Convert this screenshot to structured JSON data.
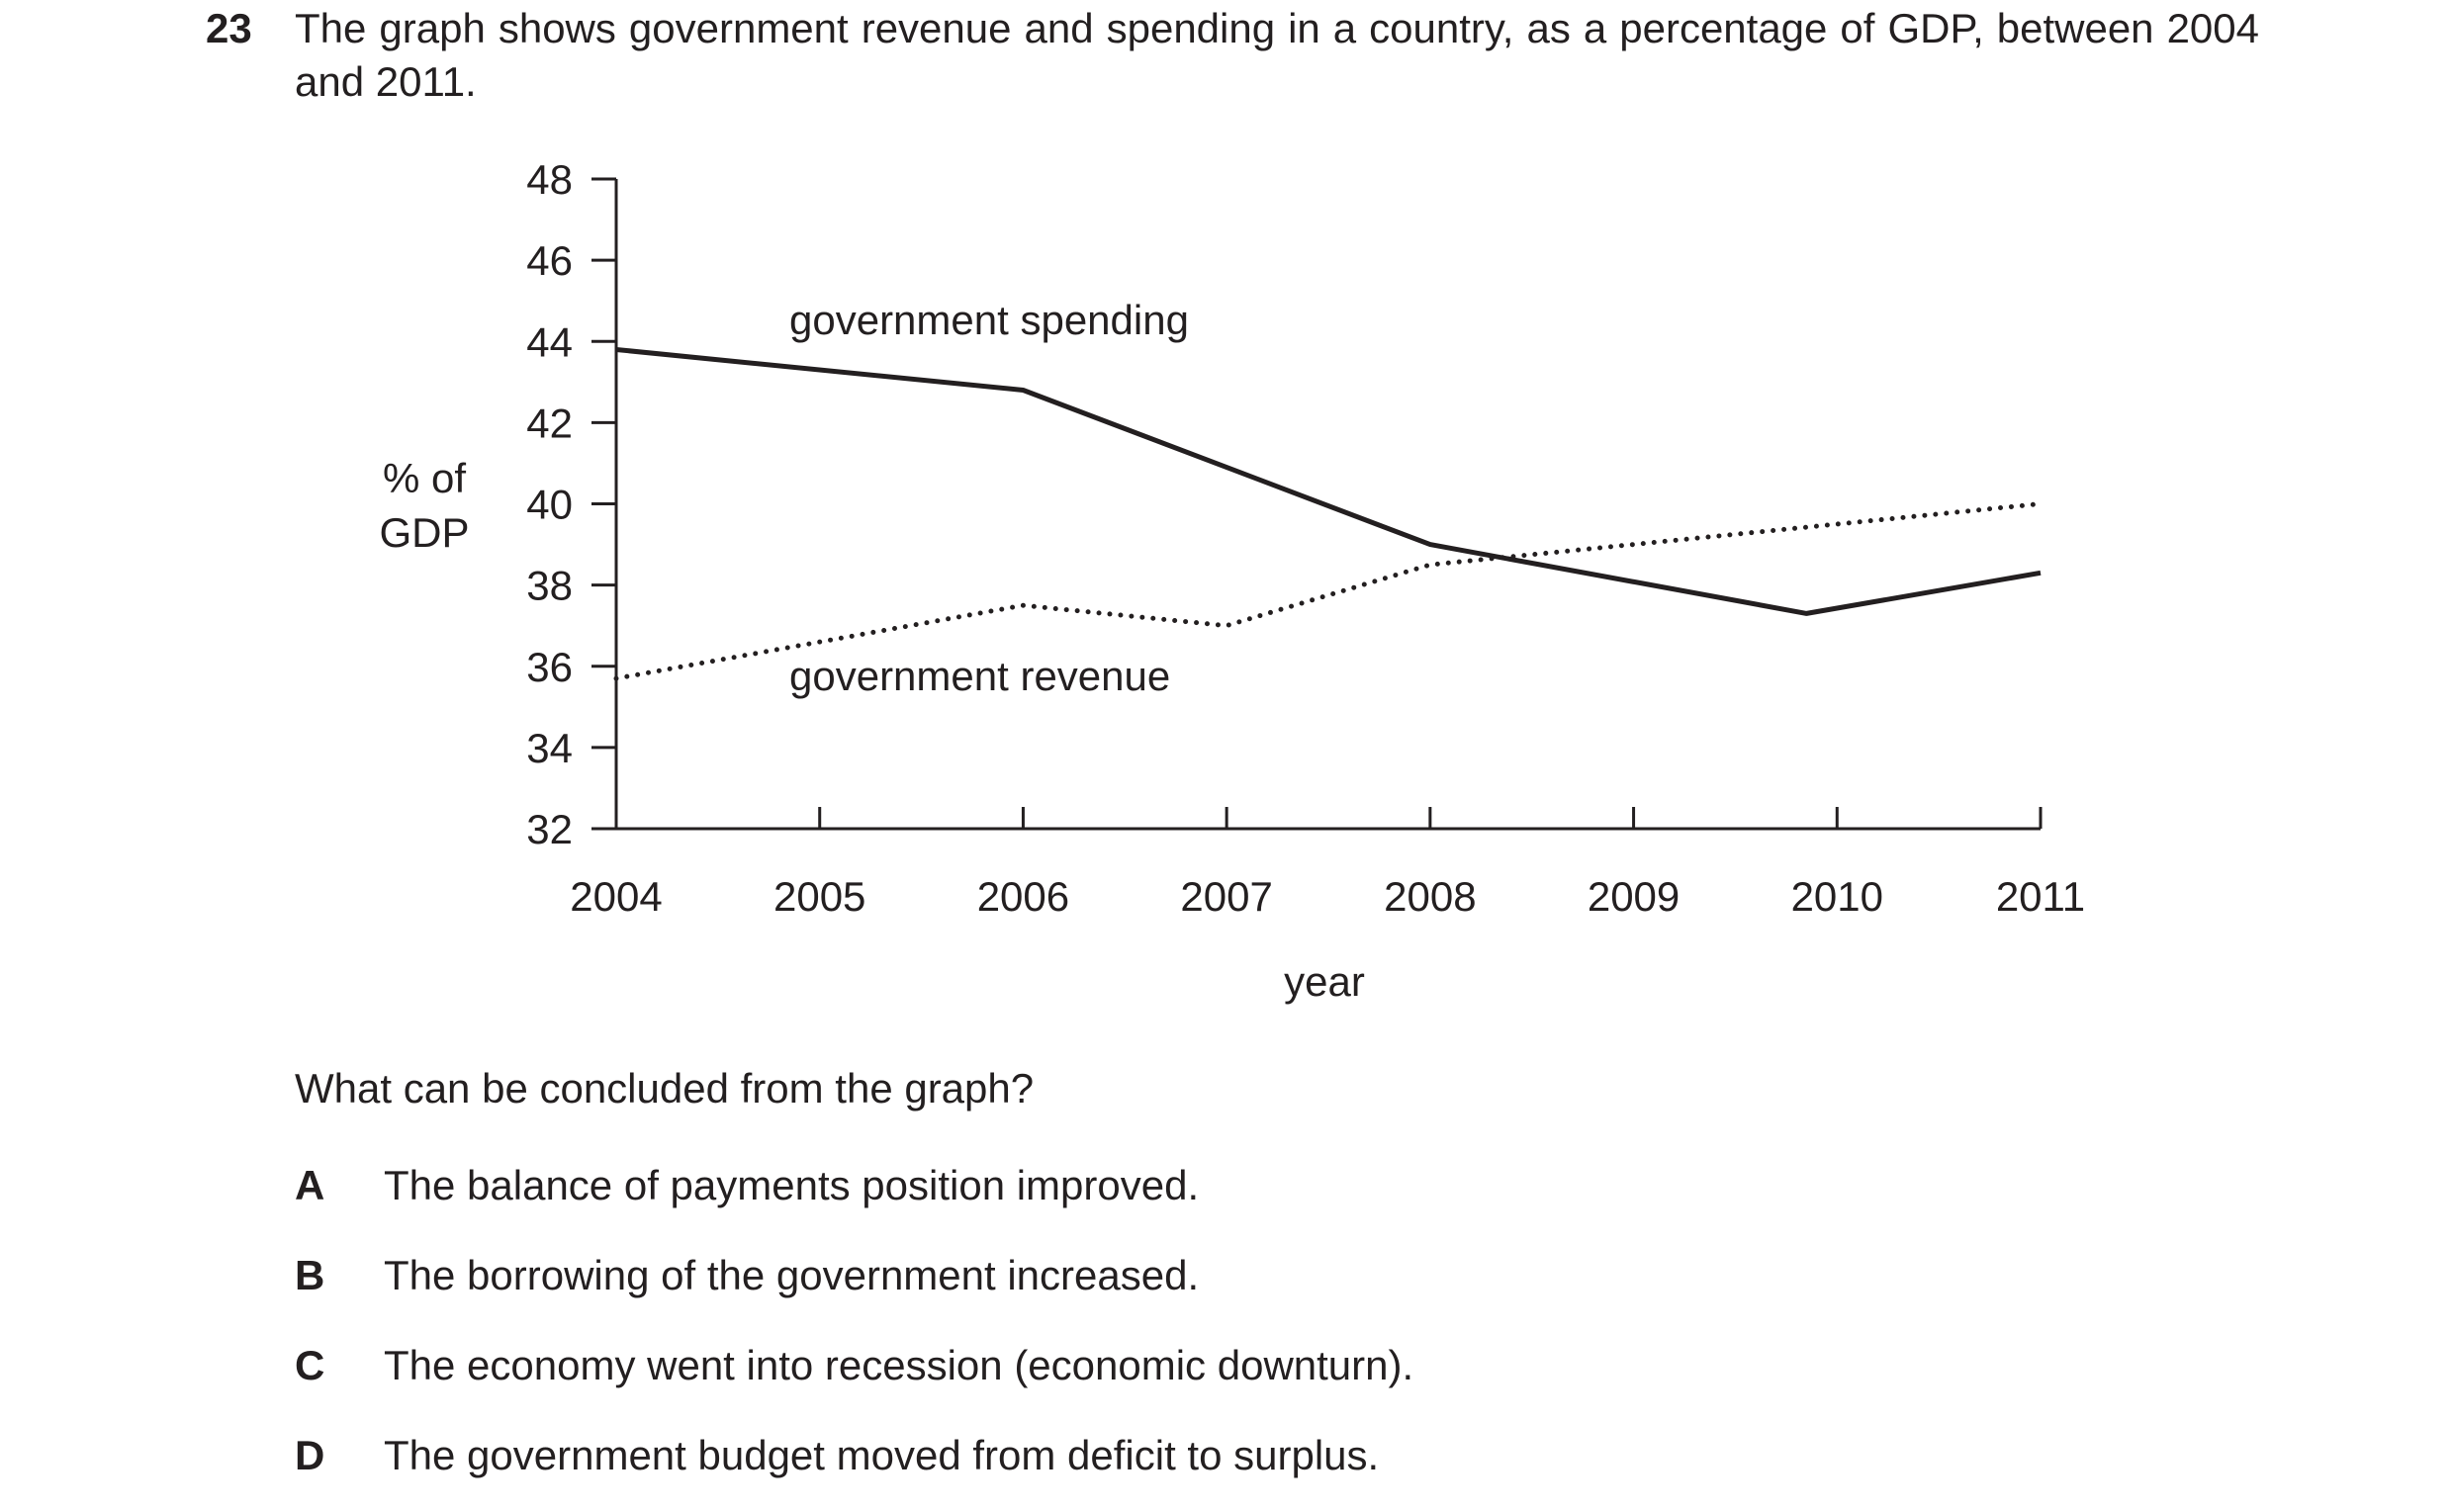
{
  "question": {
    "number": "23",
    "stem": "The graph shows government revenue and spending in a country, as a percentage of GDP, between 2004 and 2011.",
    "prompt": "What can be concluded from the graph?",
    "options": [
      {
        "letter": "A",
        "text": "The balance of payments position improved."
      },
      {
        "letter": "B",
        "text": "The borrowing of the government increased."
      },
      {
        "letter": "C",
        "text": "The economy went into recession (economic downturn)."
      },
      {
        "letter": "D",
        "text": "The government budget moved from deficit to surplus."
      }
    ]
  },
  "chart_data": {
    "type": "line",
    "title": "",
    "xlabel": "year",
    "ylabel_lines": [
      "% of",
      "GDP"
    ],
    "xlim": [
      2004,
      2011
    ],
    "ylim": [
      32,
      48
    ],
    "x_ticks": [
      2004,
      2005,
      2006,
      2007,
      2008,
      2009,
      2010,
      2011
    ],
    "y_ticks": [
      32,
      34,
      36,
      38,
      40,
      42,
      44,
      46,
      48
    ],
    "grid": false,
    "legend": "none",
    "series": [
      {
        "name": "government spending",
        "style": "solid",
        "color": "#231f20",
        "points": [
          [
            2004,
            43.8
          ],
          [
            2006,
            42.8
          ],
          [
            2008,
            39.0
          ],
          [
            2009.85,
            37.3
          ],
          [
            2011,
            38.3
          ]
        ]
      },
      {
        "name": "government revenue",
        "style": "dotted",
        "color": "#231f20",
        "points": [
          [
            2004,
            35.7
          ],
          [
            2006,
            37.5
          ],
          [
            2007,
            37.0
          ],
          [
            2008,
            38.5
          ],
          [
            2011,
            40.0
          ]
        ]
      }
    ]
  }
}
